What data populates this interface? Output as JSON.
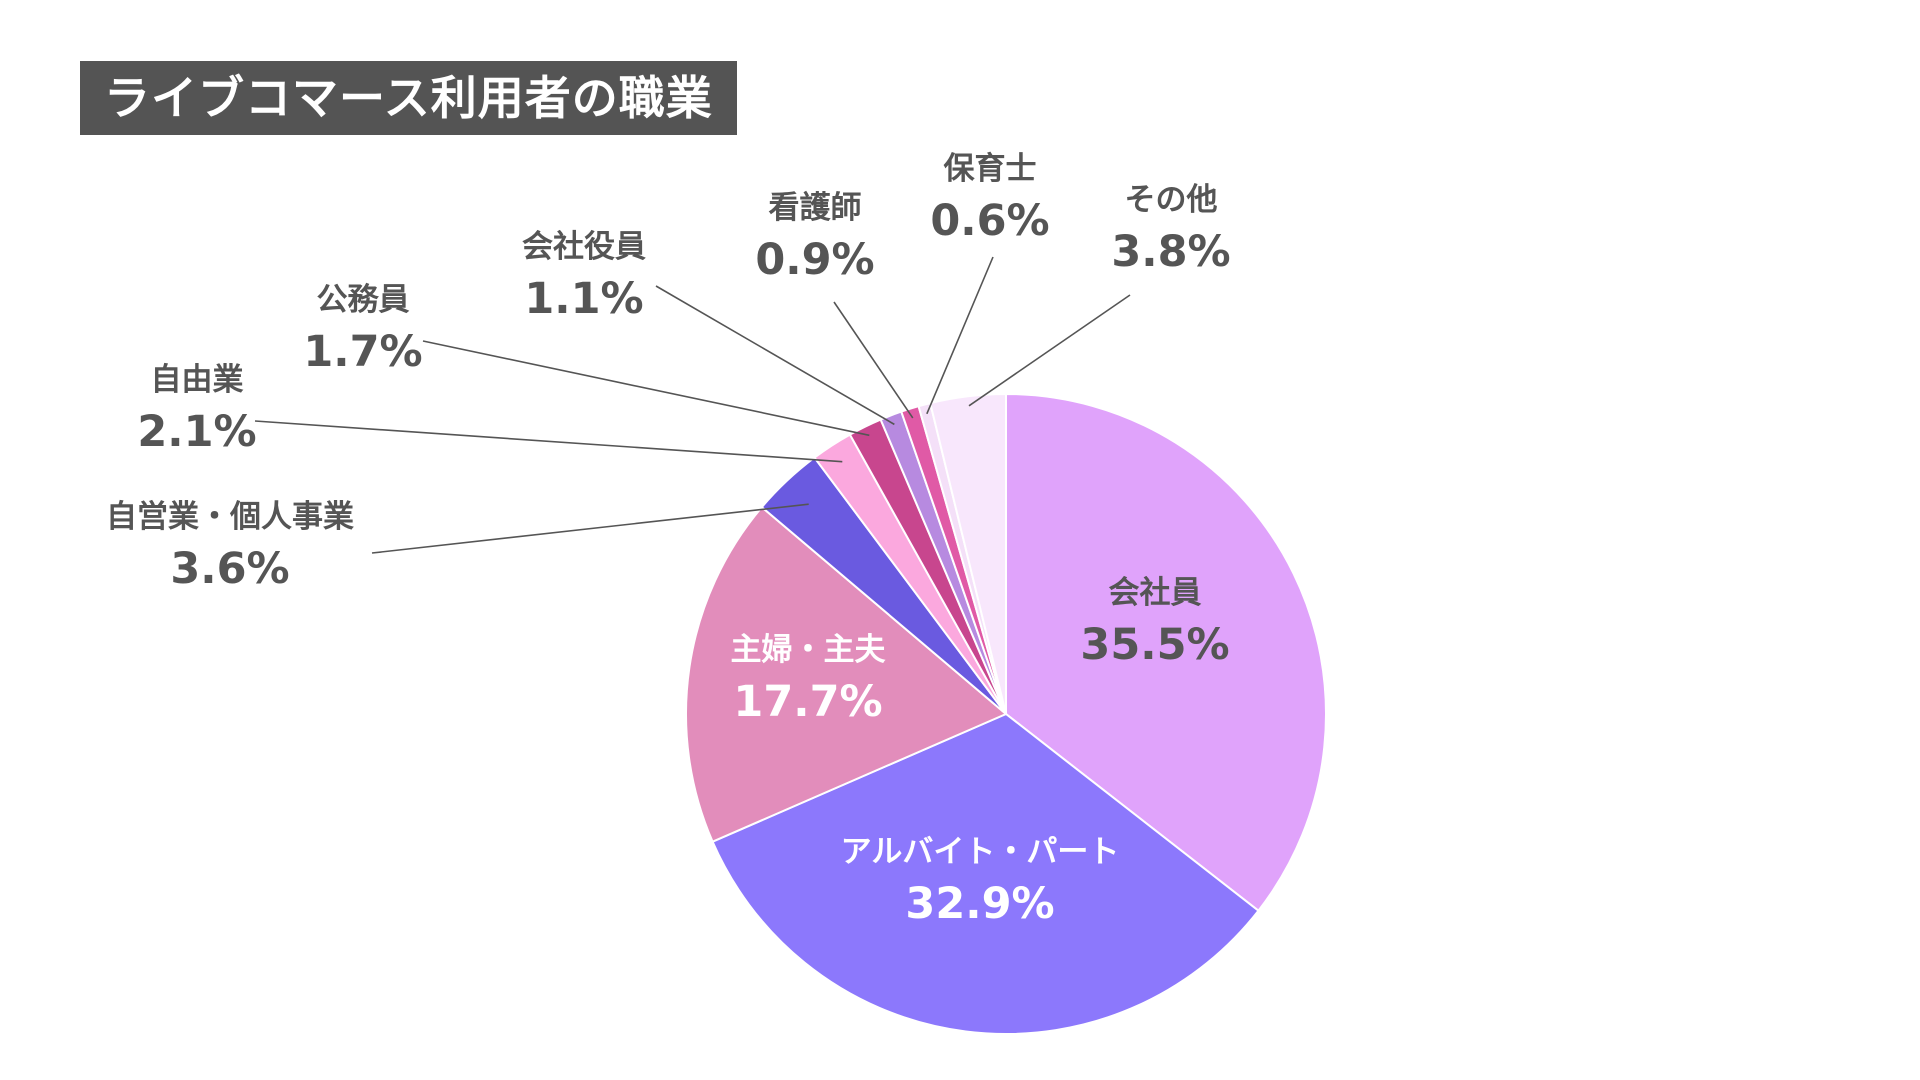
{
  "title": "ライブコマース利用者の職業",
  "chart_data": {
    "type": "pie",
    "title": "ライブコマース利用者の職業",
    "unit": "%",
    "slices": [
      {
        "label": "会社員",
        "value": 35.5,
        "value_label": "35.5%",
        "color": "#e0a3fb"
      },
      {
        "label": "アルバイト・パート",
        "value": 32.9,
        "value_label": "32.9%",
        "color": "#8c78fc"
      },
      {
        "label": "主婦・主夫",
        "value": 17.7,
        "value_label": "17.7%",
        "color": "#e28dbb"
      },
      {
        "label": "自営業・個人事業",
        "value": 3.6,
        "value_label": "3.6%",
        "color": "#6a5ae0"
      },
      {
        "label": "自由業",
        "value": 2.1,
        "value_label": "2.1%",
        "color": "#fba8de"
      },
      {
        "label": "公務員",
        "value": 1.7,
        "value_label": "1.7%",
        "color": "#c8468e"
      },
      {
        "label": "会社役員",
        "value": 1.1,
        "value_label": "1.1%",
        "color": "#b78ae0"
      },
      {
        "label": "看護師",
        "value": 0.9,
        "value_label": "0.9%",
        "color": "#e05aa6"
      },
      {
        "label": "保育士",
        "value": 0.6,
        "value_label": "0.6%",
        "color": "#f4e0f8"
      },
      {
        "label": "その他",
        "value": 3.8,
        "value_label": "3.8%",
        "color": "#f8e7fc"
      }
    ]
  }
}
